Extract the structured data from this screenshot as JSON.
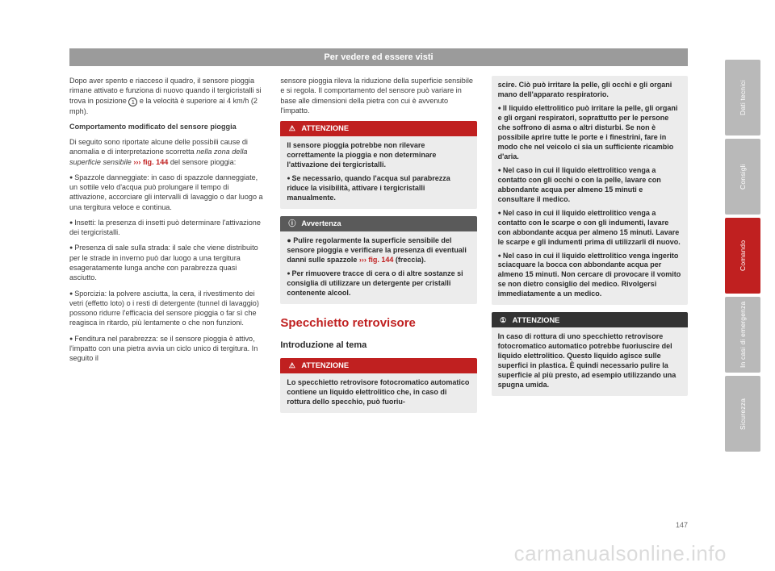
{
  "header": "Per vedere ed essere visti",
  "page_number": "147",
  "watermark": "carmanualsonline.info",
  "tabs": [
    {
      "label": "Dati tecnici",
      "active": false
    },
    {
      "label": "Consigli",
      "active": false
    },
    {
      "label": "Comando",
      "active": true
    },
    {
      "label": "In casi di emergenza",
      "active": false
    },
    {
      "label": "Sicurezza",
      "active": false
    }
  ],
  "col1": {
    "p1a": "Dopo aver spento e riacceso il quadro, il sensore pioggia rimane attivato e funziona di nuovo quando il tergicristalli si trova in posizione ",
    "p1_circ": "1",
    "p1b": " e la velocità è superiore ai 4 km/h (2 mph).",
    "sub": "Comportamento modificato del sensore pioggia",
    "p2a": "Di seguito sono riportate alcune delle possibili cause di anomalia e di interpretazione scorretta ",
    "p2_italic": "nella zona della superficie sensibile",
    "p2_ref": " ››› fig. 144",
    "p2b": " del sensore pioggia:",
    "b1": "Spazzole danneggiate: in caso di spazzole danneggiate, un sottile velo d'acqua può prolungare il tempo di attivazione, accorciare gli intervalli di lavaggio o dar luogo a una tergitura veloce e continua.",
    "b2": "Insetti: la presenza di insetti può determinare l'attivazione dei tergicristalli.",
    "b3": "Presenza di sale sulla strada: il sale che viene distribuito per le strade in inverno può dar luogo a una tergitura esageratamente lunga anche con parabrezza quasi asciutto.",
    "b4": "Sporcizia: la polvere asciutta, la cera, il rivestimento dei vetri (effetto loto) o i resti di detergente (tunnel di lavaggio) possono ridurre l'efficacia del sensore pioggia o far sì che reagisca in ritardo, più lentamente o che non funzioni.",
    "b5": "Fenditura nel parabrezza: se il sensore pioggia è attivo, l'impatto con una pietra avvia un ciclo unico di tergitura. In seguito il"
  },
  "col2": {
    "p1": "sensore pioggia rileva la riduzione della superficie sensibile e si regola. Il comportamento del sensore può variare in base alle dimensioni della pietra con cui è avvenuto l'impatto.",
    "warn": {
      "title": "ATTENZIONE",
      "b1": "Il sensore pioggia potrebbe non rilevare correttamente la pioggia e non determinare l'attivazione dei tergicristalli.",
      "b2": "Se necessario, quando l'acqua sul parabrezza riduce la visibilità, attivare i tergicristalli manualmente."
    },
    "note": {
      "title": "Avvertenza",
      "b1a": "Pulire regolarmente la superficie sensibile del sensore pioggia e verificare la presenza di eventuali danni sulle spazzole ",
      "b1_ref": "››› fig. 144",
      "b1b": " (freccia).",
      "b2": "Per rimuovere tracce di cera o di altre sostanze si consiglia di utilizzare un detergente per cristalli contenente alcool."
    },
    "h2": "Specchietto retrovisore",
    "h3": "Introduzione al tema",
    "warn2": {
      "title": "ATTENZIONE",
      "p": "Lo specchietto retrovisore fotocromatico automatico contiene un liquido elettrolitico che, in caso di rottura dello specchio, può fuoriu-"
    }
  },
  "col3": {
    "warn_cont": {
      "p1": "scire. Ciò può irritare la pelle, gli occhi e gli organi mano dell'apparato respiratorio.",
      "b1": "Il liquido elettrolitico può irritare la pelle, gli organi e gli organi respiratori, soprattutto per le persone che soffrono di asma o altri disturbi. Se non è possibile aprire tutte le porte e i finestrini, fare in modo che nel veicolo ci sia un sufficiente ricambio d'aria.",
      "b2": "Nel caso in cui il liquido elettrolitico venga a contatto con gli occhi o con la pelle, lavare con abbondante acqua per almeno 15 minuti e consultare il medico.",
      "b3": "Nel caso in cui il liquido elettrolitico venga a contatto con le scarpe o con gli indumenti, lavare con abbondante acqua per almeno 15 minuti. Lavare le scarpe e gli indumenti prima di utilizzarli di nuovo.",
      "b4": "Nel caso in cui il liquido elettrolitico venga ingerito sciacquare la bocca con abbondante acqua per almeno 15 minuti. Non cercare di provocare il vomito se non dietro consiglio del medico. Rivolgersi immediatamente a un medico."
    },
    "info": {
      "title": "ATTENZIONE",
      "p": "In caso di rottura di uno specchietto retrovisore fotocromatico automatico potrebbe fuoriuscire del liquido elettrolitico. Questo liquido agisce sulle superfici in plastica. È quindi necessario pulire la superficie al più presto, ad esempio utilizzando una spugna umida."
    }
  },
  "colors": {
    "header_bg": "#9b9b9b",
    "accent": "#c02020",
    "box_bg": "#ececec",
    "note_head": "#5a5a5a",
    "info_head": "#333333",
    "tab_bg": "#b9b9b9",
    "text": "#3a3a3a"
  }
}
